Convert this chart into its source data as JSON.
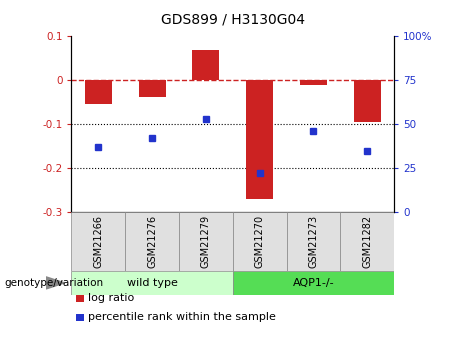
{
  "title": "GDS899 / H3130G04",
  "samples": [
    "GSM21266",
    "GSM21276",
    "GSM21279",
    "GSM21270",
    "GSM21273",
    "GSM21282"
  ],
  "log_ratio": [
    -0.055,
    -0.038,
    0.068,
    -0.27,
    -0.01,
    -0.095
  ],
  "percentile_rank": [
    37,
    42,
    53,
    22,
    46,
    35
  ],
  "bar_color": "#cc2222",
  "dot_color": "#2233cc",
  "ylim_left": [
    -0.3,
    0.1
  ],
  "ylim_right": [
    0,
    100
  ],
  "yticks_left": [
    0.1,
    0.0,
    -0.1,
    -0.2,
    -0.3
  ],
  "yticks_right": [
    100,
    75,
    50,
    25,
    0
  ],
  "hline_y": 0,
  "dotted_lines": [
    -0.1,
    -0.2
  ],
  "groups": [
    {
      "label": "wild type",
      "indices": [
        0,
        1,
        2
      ],
      "color": "#ccffcc"
    },
    {
      "label": "AQP1-/-",
      "indices": [
        3,
        4,
        5
      ],
      "color": "#55dd55"
    }
  ],
  "legend_items": [
    {
      "label": "log ratio",
      "color": "#cc2222"
    },
    {
      "label": "percentile rank within the sample",
      "color": "#2233cc"
    }
  ],
  "genotype_label": "genotype/variation",
  "bar_width": 0.5,
  "tick_label_color_left": "#cc2222",
  "tick_label_color_right": "#2233cc",
  "title_fontsize": 10,
  "tick_fontsize": 7.5,
  "label_fontsize": 7,
  "group_fontsize": 8
}
